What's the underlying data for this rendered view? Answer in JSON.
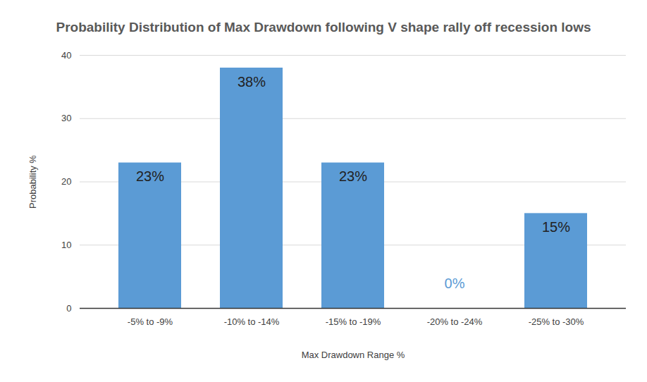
{
  "chart_data": {
    "type": "bar",
    "title": "Probability Distribution of Max Drawdown following V shape rally off recession lows",
    "x_label": "Max Drawdown Range %",
    "y_label": "Probability %",
    "categories": [
      "-5% to -9%",
      "-10% to -14%",
      "-15% to -19%",
      "-20% to -24%",
      "-25% to -30%"
    ],
    "values": [
      23,
      38,
      23,
      0,
      15
    ],
    "value_labels": [
      "23%",
      "38%",
      "23%",
      "0%",
      "15%"
    ],
    "color": "#5b9bd5",
    "ylim": [
      0,
      40
    ],
    "yticks": [
      0,
      10,
      20,
      30,
      40
    ],
    "grid": true,
    "data_labels": true
  }
}
